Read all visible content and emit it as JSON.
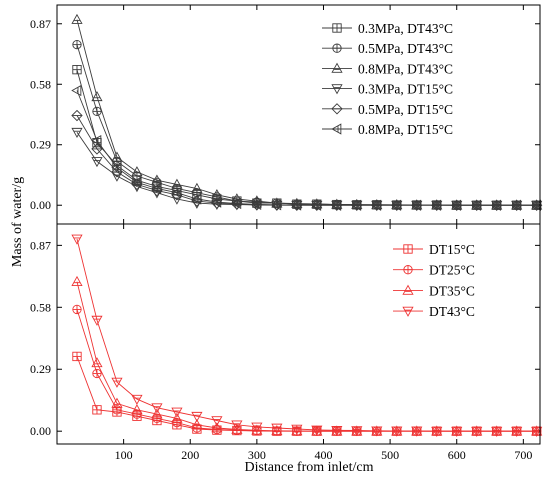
{
  "figure": {
    "ylabel": "Mass of water/g",
    "xlabel": "Distance from inlet/cm"
  },
  "chart_data": [
    {
      "type": "line",
      "panel": "top",
      "x": [
        30,
        60,
        90,
        120,
        150,
        180,
        210,
        240,
        270,
        300,
        330,
        360,
        390,
        420,
        450,
        480,
        510,
        540,
        570,
        600,
        630,
        660,
        690,
        720
      ],
      "xlim": [
        0,
        725
      ],
      "ylim": [
        -0.09,
        0.96
      ],
      "xticks": [
        100,
        200,
        300,
        400,
        500,
        600,
        700
      ],
      "yticks": [
        0.0,
        0.29,
        0.58,
        0.87
      ],
      "ytick_labels": [
        "0.00",
        "0.29",
        "0.58",
        "0.87"
      ],
      "legend_position": "top-right",
      "series": [
        {
          "name": "0.3MPa, DT43°C",
          "marker": "square-plus",
          "color": "#3c3c3c",
          "values": [
            0.65,
            0.3,
            0.19,
            0.12,
            0.09,
            0.07,
            0.05,
            0.03,
            0.02,
            0.01,
            0.01,
            0.005,
            0.005,
            0.003,
            0.002,
            0.002,
            0.001,
            0.001,
            0.001,
            0.0,
            0.0,
            0.0,
            0.0,
            0.0
          ]
        },
        {
          "name": "0.5MPa, DT43°C",
          "marker": "circle-plus",
          "color": "#3c3c3c",
          "values": [
            0.77,
            0.45,
            0.21,
            0.14,
            0.11,
            0.08,
            0.06,
            0.04,
            0.02,
            0.015,
            0.01,
            0.006,
            0.005,
            0.003,
            0.002,
            0.002,
            0.001,
            0.001,
            0.001,
            0.0,
            0.0,
            0.0,
            0.0,
            0.0
          ]
        },
        {
          "name": "0.8MPa, DT43°C",
          "marker": "triangle-up-bar",
          "color": "#3c3c3c",
          "values": [
            0.89,
            0.52,
            0.23,
            0.16,
            0.12,
            0.1,
            0.08,
            0.05,
            0.03,
            0.02,
            0.01,
            0.008,
            0.006,
            0.004,
            0.003,
            0.002,
            0.002,
            0.001,
            0.001,
            0.0,
            0.0,
            0.0,
            0.0,
            0.0
          ]
        },
        {
          "name": "0.3MPa, DT15°C",
          "marker": "triangle-down-bar",
          "color": "#3c3c3c",
          "values": [
            0.35,
            0.21,
            0.14,
            0.09,
            0.06,
            0.03,
            0.01,
            0.005,
            0.003,
            0.001,
            0.0,
            0.0,
            0.0,
            0.0,
            0.0,
            0.0,
            0.0,
            0.0,
            0.0,
            0.0,
            0.0,
            0.0,
            0.0,
            0.0
          ]
        },
        {
          "name": "0.5MPa, DT15°C",
          "marker": "diamond-bar",
          "color": "#3c3c3c",
          "values": [
            0.43,
            0.27,
            0.16,
            0.1,
            0.07,
            0.05,
            0.02,
            0.01,
            0.005,
            0.002,
            0.001,
            0.0,
            0.0,
            0.0,
            0.0,
            0.0,
            0.0,
            0.0,
            0.0,
            0.0,
            0.0,
            0.0,
            0.0,
            0.0
          ]
        },
        {
          "name": "0.8MPa, DT15°C",
          "marker": "triangle-left-bar",
          "color": "#3c3c3c",
          "values": [
            0.55,
            0.31,
            0.18,
            0.11,
            0.08,
            0.06,
            0.03,
            0.015,
            0.008,
            0.004,
            0.002,
            0.001,
            0.0,
            0.0,
            0.0,
            0.0,
            0.0,
            0.0,
            0.0,
            0.0,
            0.0,
            0.0,
            0.0,
            0.0
          ]
        }
      ]
    },
    {
      "type": "line",
      "panel": "bottom",
      "x": [
        30,
        60,
        90,
        120,
        150,
        180,
        210,
        240,
        270,
        300,
        330,
        360,
        390,
        420,
        450,
        480,
        510,
        540,
        570,
        600,
        630,
        660,
        690,
        720
      ],
      "xlim": [
        0,
        725
      ],
      "ylim": [
        -0.06,
        0.97
      ],
      "xticks": [
        100,
        200,
        300,
        400,
        500,
        600,
        700
      ],
      "xtick_labels": [
        "100",
        "200",
        "300",
        "400",
        "500",
        "600",
        "700"
      ],
      "yticks": [
        0.0,
        0.29,
        0.58,
        0.87
      ],
      "ytick_labels": [
        "0.00",
        "0.29",
        "0.58",
        "0.87"
      ],
      "legend_position": "top-right",
      "series": [
        {
          "name": "DT15°C",
          "marker": "square-plus",
          "color": "#ee3333",
          "values": [
            0.35,
            0.1,
            0.09,
            0.07,
            0.05,
            0.03,
            0.01,
            0.005,
            0.003,
            0.001,
            0.0,
            0.0,
            0.0,
            0.0,
            0.0,
            0.0,
            0.0,
            0.0,
            0.0,
            0.0,
            0.0,
            0.0,
            0.0,
            0.0
          ]
        },
        {
          "name": "DT25°C",
          "marker": "circle-plus",
          "color": "#ee3333",
          "values": [
            0.57,
            0.27,
            0.1,
            0.08,
            0.06,
            0.04,
            0.015,
            0.008,
            0.004,
            0.002,
            0.001,
            0.0,
            0.0,
            0.0,
            0.0,
            0.0,
            0.0,
            0.0,
            0.0,
            0.0,
            0.0,
            0.0,
            0.0,
            0.0
          ]
        },
        {
          "name": "DT35°C",
          "marker": "triangle-up-bar",
          "color": "#ee3333",
          "values": [
            0.7,
            0.32,
            0.13,
            0.1,
            0.08,
            0.06,
            0.03,
            0.015,
            0.008,
            0.004,
            0.002,
            0.001,
            0.0,
            0.0,
            0.0,
            0.0,
            0.0,
            0.0,
            0.0,
            0.0,
            0.0,
            0.0,
            0.0,
            0.0
          ]
        },
        {
          "name": "DT43°C",
          "marker": "triangle-down-bar",
          "color": "#ee3333",
          "values": [
            0.9,
            0.52,
            0.23,
            0.15,
            0.11,
            0.09,
            0.07,
            0.05,
            0.03,
            0.02,
            0.015,
            0.01,
            0.006,
            0.004,
            0.003,
            0.002,
            0.001,
            0.001,
            0.0,
            0.0,
            0.0,
            0.0,
            0.0,
            0.0
          ]
        }
      ]
    }
  ]
}
